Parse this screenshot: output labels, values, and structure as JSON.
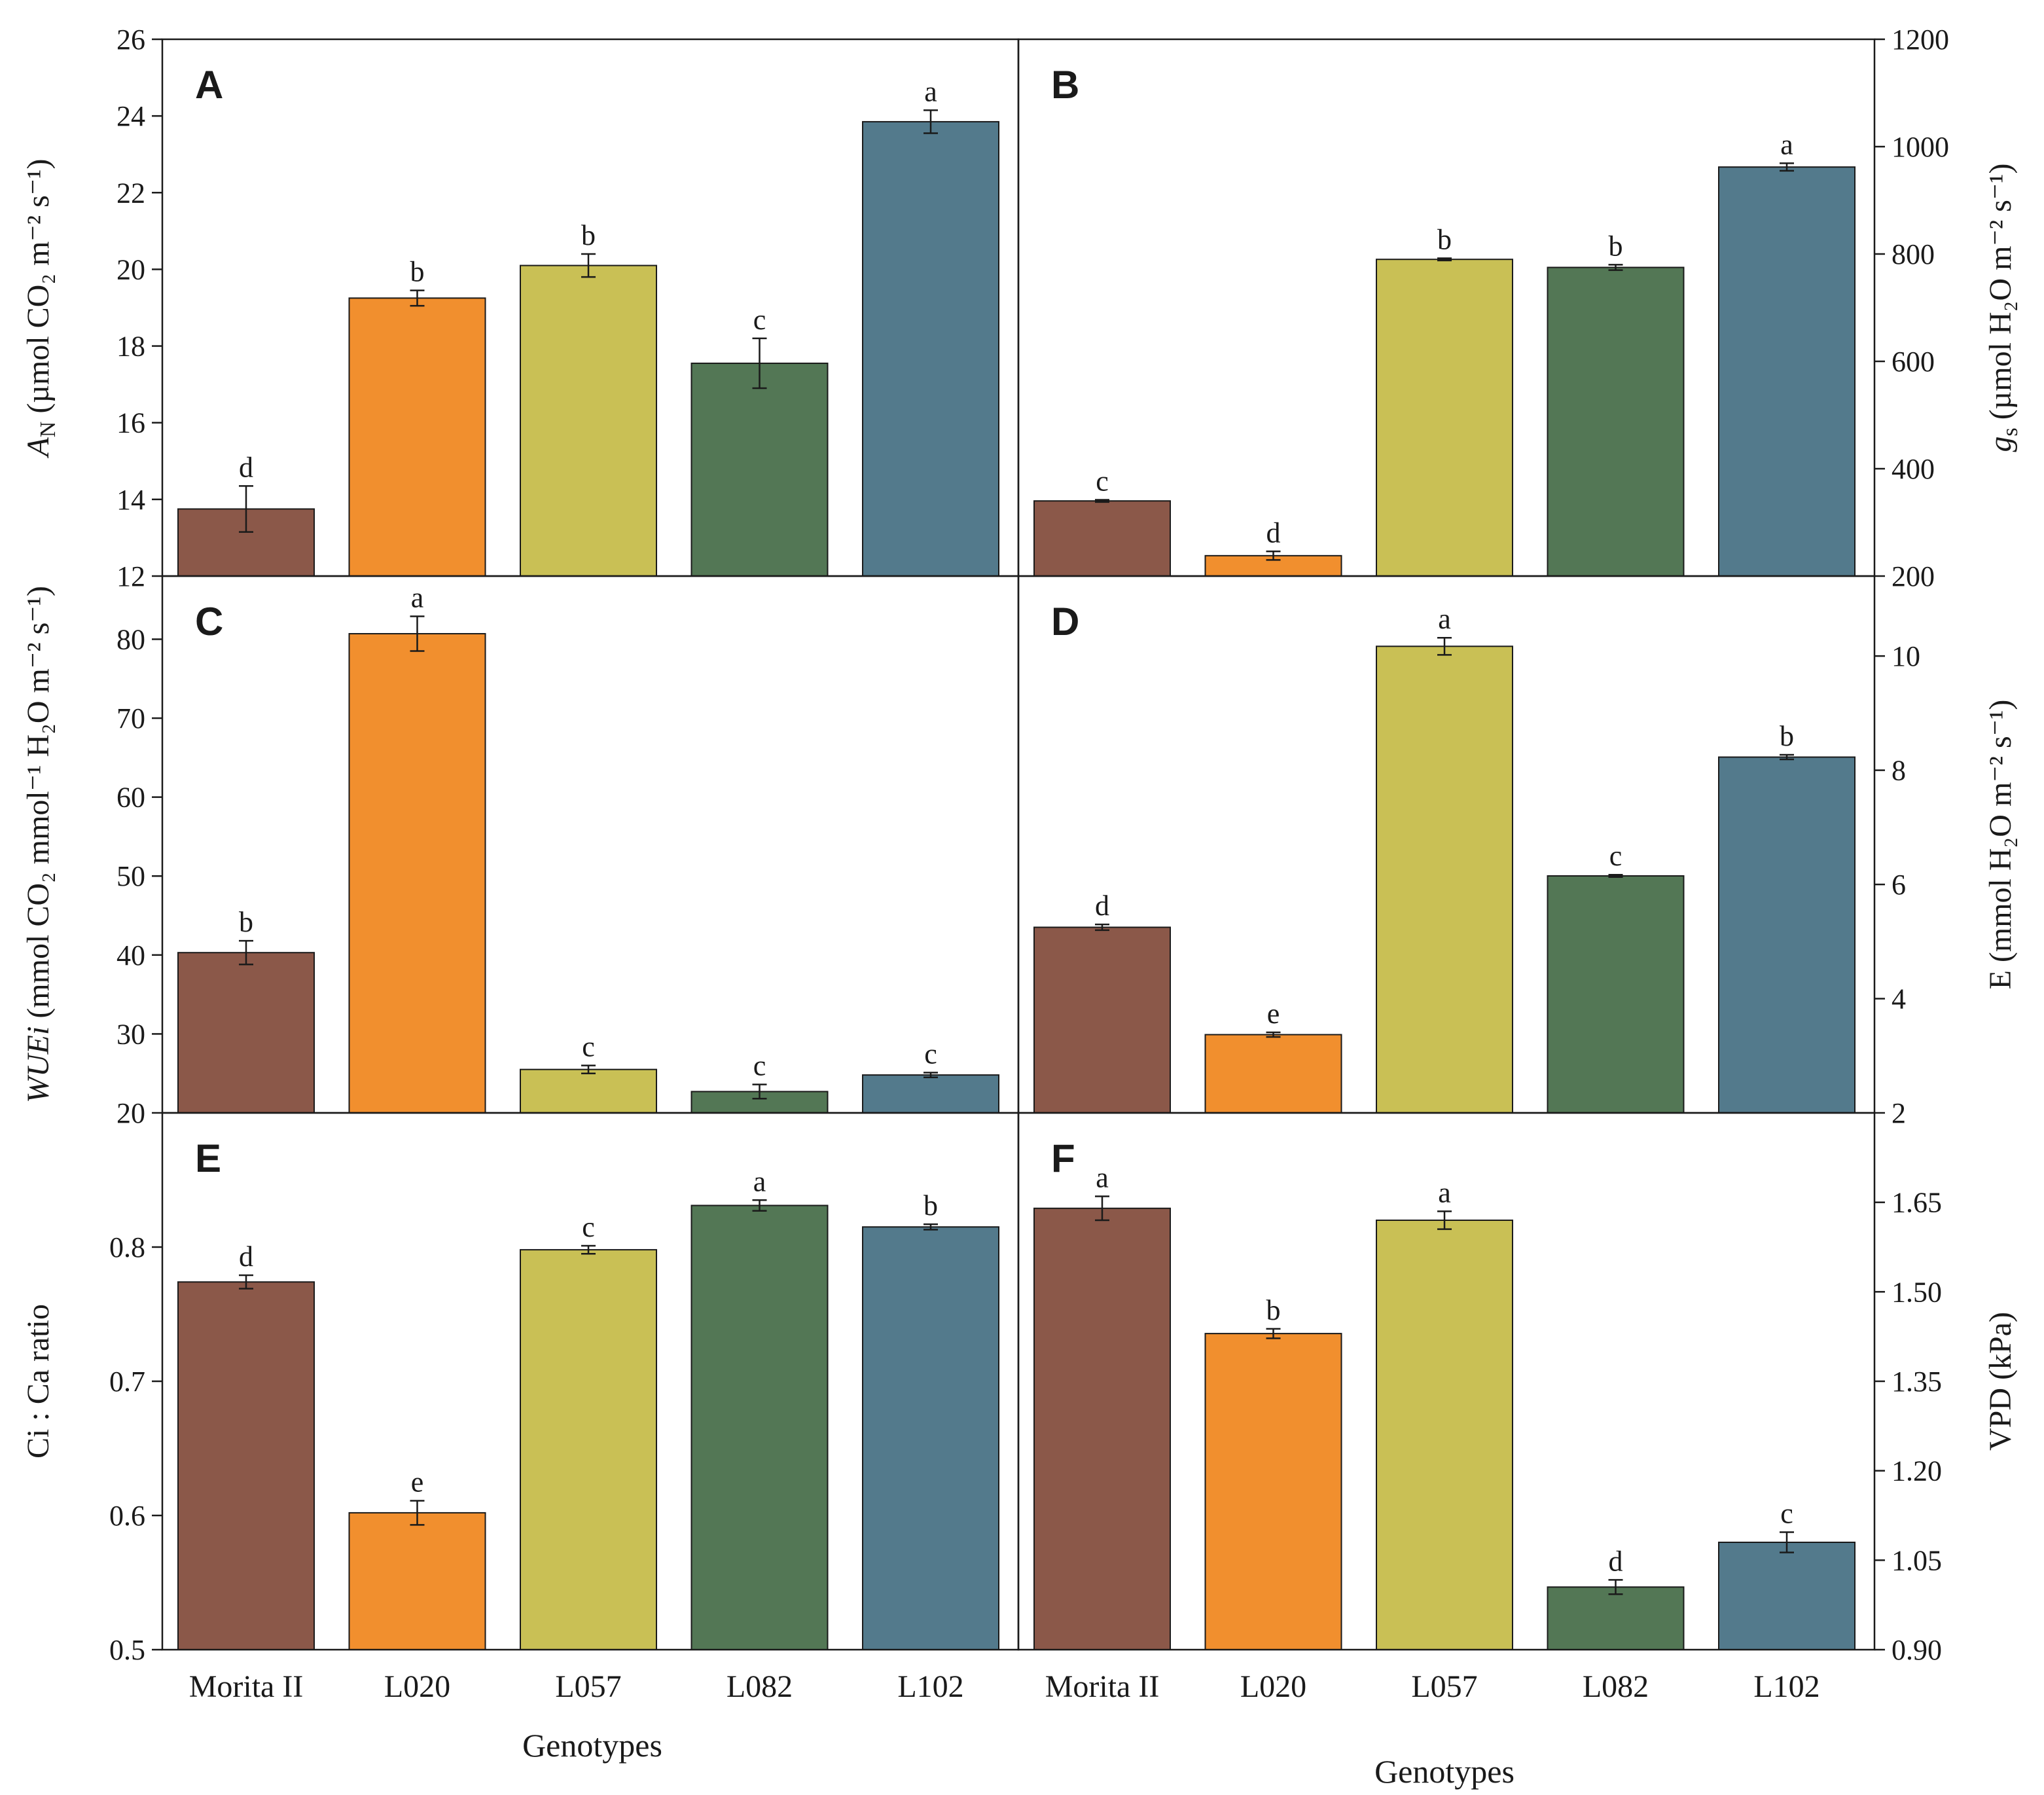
{
  "figure": {
    "xlabel_left": "Genotypes",
    "xlabel_right": "Genotypes"
  },
  "colors": {
    "Morita II": "#8b5849",
    "L020": "#f18f2e",
    "L057": "#c9c055",
    "L082": "#537755",
    "L102": "#537a8c"
  },
  "chart_data": [
    {
      "panel": "A",
      "type": "bar",
      "categories": [
        "Morita II",
        "L020",
        "L057",
        "L082",
        "L102"
      ],
      "values": [
        13.75,
        19.25,
        20.1,
        17.55,
        23.85
      ],
      "errors": [
        0.6,
        0.2,
        0.3,
        0.65,
        0.3
      ],
      "letters": [
        "d",
        "b",
        "b",
        "c",
        "a"
      ],
      "ylim": [
        12,
        26
      ],
      "yticks": [
        "12",
        "14",
        "16",
        "18",
        "20",
        "22",
        "24",
        "26"
      ],
      "ylabel_italic": "A",
      "ylabel_sub": "N",
      "ylabel_rest": " (µmol CO₂ m⁻² s⁻¹)",
      "axis_side": "left"
    },
    {
      "panel": "B",
      "type": "bar",
      "categories": [
        "Morita II",
        "L020",
        "L057",
        "L082",
        "L102"
      ],
      "values": [
        340,
        238,
        790,
        775,
        962
      ],
      "errors": [
        2,
        8,
        2,
        5,
        7
      ],
      "letters": [
        "c",
        "d",
        "b",
        "b",
        "a"
      ],
      "ylim": [
        200,
        1200
      ],
      "yticks": [
        "200",
        "400",
        "600",
        "800",
        "1000",
        "1200"
      ],
      "ylabel_italic": "g",
      "ylabel_sub": "s",
      "ylabel_rest": " (µmol H₂O m⁻² s⁻¹)",
      "axis_side": "right"
    },
    {
      "panel": "C",
      "type": "bar",
      "categories": [
        "Morita II",
        "L020",
        "L057",
        "L082",
        "L102"
      ],
      "values": [
        40.3,
        80.7,
        25.5,
        22.7,
        24.8
      ],
      "errors": [
        1.5,
        2.2,
        0.5,
        0.9,
        0.3
      ],
      "letters": [
        "b",
        "a",
        "c",
        "c",
        "c"
      ],
      "ylim": [
        20,
        88
      ],
      "yticks": [
        "20",
        "30",
        "40",
        "50",
        "60",
        "70",
        "80"
      ],
      "ylabel_italic": "WUEi",
      "ylabel_sub": "",
      "ylabel_rest": " (mmol CO₂ mmol⁻¹ H₂O m⁻² s⁻¹)",
      "axis_side": "left"
    },
    {
      "panel": "D",
      "type": "bar",
      "categories": [
        "Morita II",
        "L020",
        "L057",
        "L082",
        "L102"
      ],
      "values": [
        5.25,
        3.37,
        10.17,
        6.15,
        8.23
      ],
      "errors": [
        0.05,
        0.04,
        0.15,
        0.02,
        0.04
      ],
      "letters": [
        "d",
        "e",
        "a",
        "c",
        "b"
      ],
      "ylim": [
        2,
        11.4
      ],
      "yticks": [
        "2",
        "4",
        "6",
        "8",
        "10"
      ],
      "ylabel_italic": "",
      "ylabel_sub": "",
      "ylabel_rest": "E (mmol H₂O m⁻² s⁻¹)",
      "axis_side": "right"
    },
    {
      "panel": "E",
      "type": "bar",
      "categories": [
        "Morita II",
        "L020",
        "L057",
        "L082",
        "L102"
      ],
      "values": [
        0.774,
        0.602,
        0.798,
        0.831,
        0.815
      ],
      "errors": [
        0.005,
        0.009,
        0.003,
        0.004,
        0.002
      ],
      "letters": [
        "d",
        "e",
        "c",
        "a",
        "b"
      ],
      "ylim": [
        0.5,
        0.9
      ],
      "yticks": [
        "0.5",
        "0.6",
        "0.7",
        "0.8"
      ],
      "ylabel_italic": "",
      "ylabel_sub": "",
      "ylabel_rest": "Ci : Ca ratio",
      "axis_side": "left"
    },
    {
      "panel": "F",
      "type": "bar",
      "categories": [
        "Morita II",
        "L020",
        "L057",
        "L082",
        "L102"
      ],
      "values": [
        1.64,
        1.43,
        1.62,
        1.005,
        1.08
      ],
      "errors": [
        0.02,
        0.008,
        0.015,
        0.012,
        0.017
      ],
      "letters": [
        "a",
        "b",
        "a",
        "d",
        "c"
      ],
      "ylim": [
        0.9,
        1.8
      ],
      "yticks": [
        "0.90",
        "1.05",
        "1.20",
        "1.35",
        "1.50",
        "1.65"
      ],
      "ylabel_italic": "",
      "ylabel_sub": "",
      "ylabel_rest": "VPD (kPa)",
      "axis_side": "right"
    }
  ]
}
